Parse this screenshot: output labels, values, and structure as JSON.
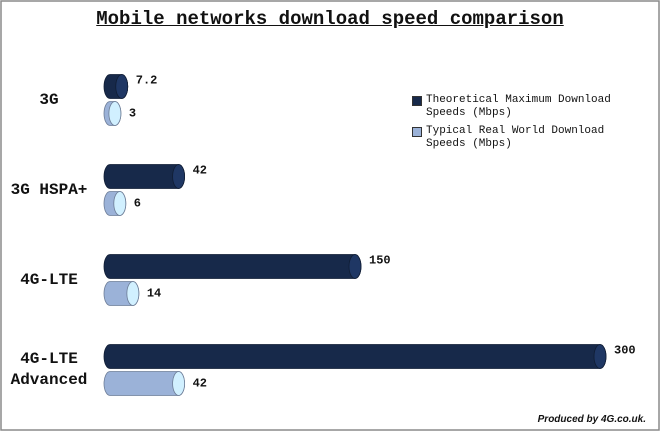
{
  "chart_data": {
    "type": "bar",
    "title": "Mobile networks download speed comparison",
    "categories": [
      "3G",
      "3G HSPA+",
      "4G-LTE",
      "4G-LTE Advanced"
    ],
    "series": [
      {
        "name": "Theoretical Maximum Download Speeds (Mbps)",
        "color": "#17294a",
        "values": [
          7.2,
          42,
          150,
          300
        ]
      },
      {
        "name": "Typical Real World Download Speeds (Mbps)",
        "color": "#9bb2d8",
        "values": [
          3,
          6,
          14,
          42
        ]
      }
    ],
    "legend": "right",
    "credit": "Produced by 4G.co.uk."
  }
}
